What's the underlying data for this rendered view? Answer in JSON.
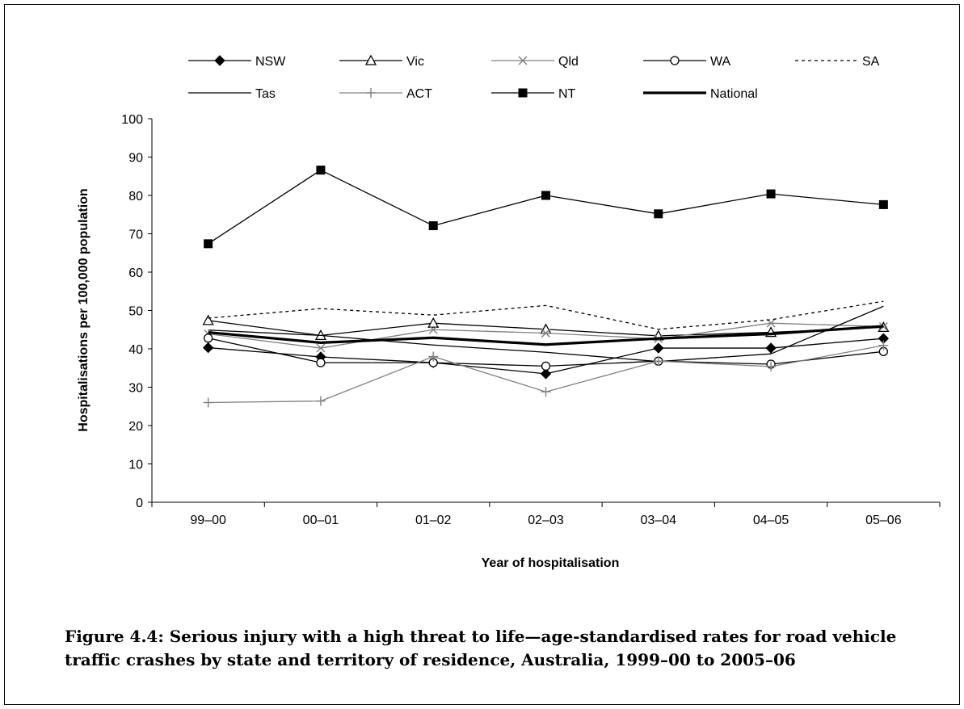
{
  "caption": "Figure 4.4: Serious injury with a high threat to life—age-standardised rates for road vehicle traffic crashes by state and territory of residence, Australia, 1999–00 to 2005–06",
  "chart_data": {
    "type": "line",
    "title": "",
    "xlabel": "Year of hospitalisation",
    "ylabel": "Hospitalisations per 100,000 population",
    "categories": [
      "99–00",
      "00–01",
      "01–02",
      "02–03",
      "03–04",
      "04–05",
      "05–06"
    ],
    "ylim": [
      0,
      100
    ],
    "yticks": [
      0,
      10,
      20,
      30,
      40,
      50,
      60,
      70,
      80,
      90,
      100
    ],
    "grid": false,
    "legend_position": "top",
    "series": [
      {
        "name": "NSW",
        "values": [
          40.3,
          37.9,
          36.4,
          33.5,
          40.2,
          40.2,
          42.7
        ],
        "color": "#000000",
        "marker": "diamond",
        "dash": "solid",
        "width": 1.3
      },
      {
        "name": "Vic",
        "values": [
          47.4,
          43.5,
          46.7,
          45.1,
          43.4,
          44.3,
          45.6
        ],
        "color": "#000000",
        "marker": "triangle",
        "dash": "solid",
        "width": 1.3
      },
      {
        "name": "Qld",
        "values": [
          43.9,
          40.2,
          45.0,
          44.1,
          42.6,
          46.7,
          45.8
        ],
        "color": "#808080",
        "marker": "cross",
        "dash": "solid",
        "width": 1.3
      },
      {
        "name": "WA",
        "values": [
          42.8,
          36.4,
          36.4,
          35.5,
          36.8,
          36.0,
          39.3
        ],
        "color": "#000000",
        "marker": "circle",
        "dash": "solid",
        "width": 1.3
      },
      {
        "name": "SA",
        "values": [
          48.0,
          50.5,
          48.8,
          51.3,
          45.1,
          47.6,
          52.4
        ],
        "color": "#000000",
        "marker": "none",
        "dash": "dotted",
        "width": 1.3
      },
      {
        "name": "Tas",
        "values": [
          44.9,
          43.5,
          41.0,
          39.1,
          36.7,
          38.7,
          51.1
        ],
        "color": "#000000",
        "marker": "none",
        "dash": "solid",
        "width": 1.3
      },
      {
        "name": "ACT",
        "values": [
          26.0,
          26.4,
          38.0,
          28.8,
          36.8,
          35.4,
          40.9
        ],
        "color": "#808080",
        "marker": "plus",
        "dash": "solid",
        "width": 1.3
      },
      {
        "name": "NT",
        "values": [
          67.4,
          86.6,
          72.1,
          80.0,
          75.2,
          80.4,
          77.6
        ],
        "color": "#000000",
        "marker": "square",
        "dash": "solid",
        "width": 1.3
      },
      {
        "name": "National",
        "values": [
          44.3,
          41.6,
          42.9,
          41.1,
          42.7,
          43.9,
          45.9
        ],
        "color": "#000000",
        "marker": "none",
        "dash": "solid",
        "width": 3.2
      }
    ]
  }
}
